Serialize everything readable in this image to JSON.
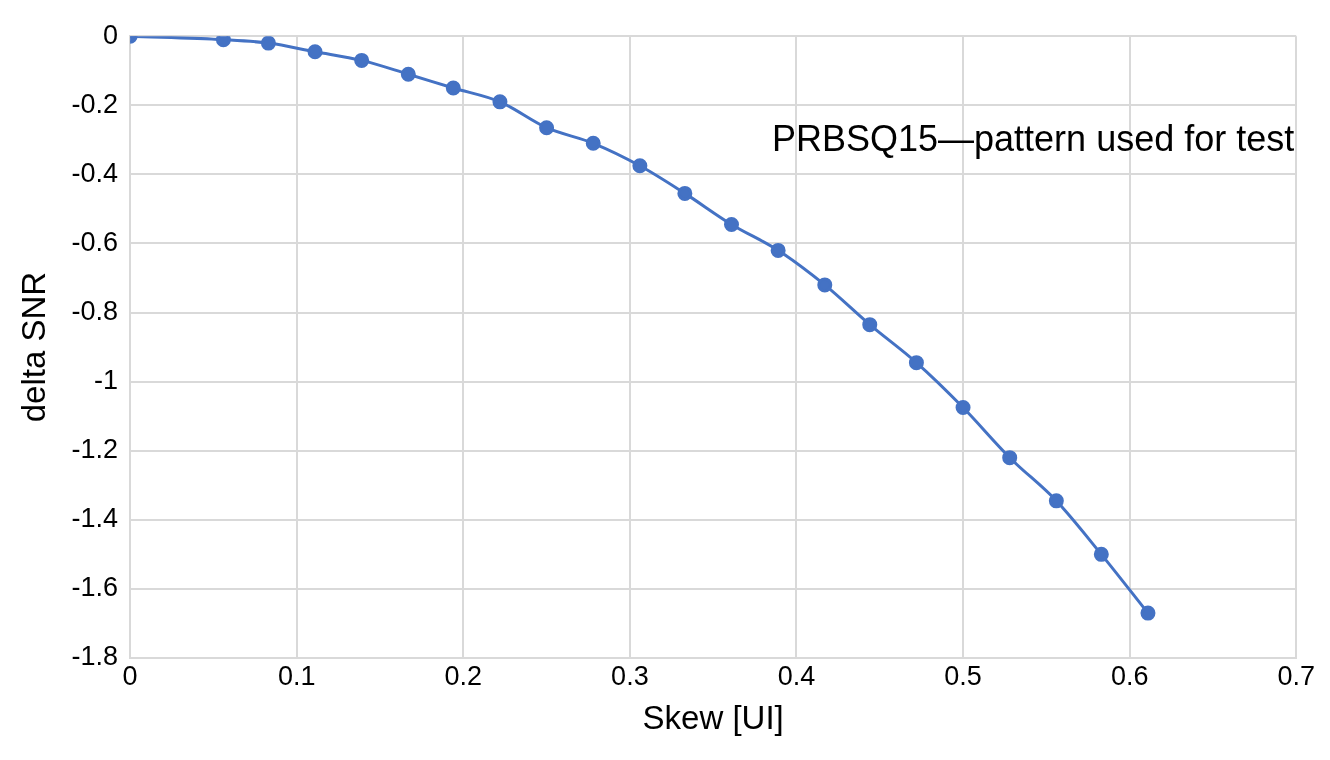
{
  "chart_data": {
    "type": "line",
    "xlabel": "Skew [UI]",
    "ylabel": "delta SNR",
    "annotations": [
      "PRBSQ15—pattern used for test"
    ],
    "x": [
      0,
      0.056,
      0.083,
      0.111,
      0.139,
      0.167,
      0.194,
      0.222,
      0.25,
      0.278,
      0.306,
      0.333,
      0.361,
      0.389,
      0.417,
      0.444,
      0.472,
      0.5,
      0.528,
      0.556,
      0.583,
      0.611
    ],
    "series": [
      {
        "color": "#4472c4",
        "values": [
          0,
          -0.01,
          -0.02,
          -0.045,
          -0.07,
          -0.11,
          -0.15,
          -0.19,
          -0.265,
          -0.31,
          -0.375,
          -0.455,
          -0.545,
          -0.62,
          -0.72,
          -0.835,
          -0.945,
          -1.075,
          -1.22,
          -1.345,
          -1.5,
          -1.67
        ]
      }
    ],
    "xlim": [
      0,
      0.7
    ],
    "xticks": [
      0,
      0.1,
      0.2,
      0.3,
      0.4,
      0.5,
      0.6,
      0.7
    ],
    "ylim": [
      -1.8,
      0
    ],
    "yticks": [
      0,
      -0.2,
      -0.4,
      -0.6,
      -0.8,
      -1,
      -1.2,
      -1.4,
      -1.6,
      -1.8
    ],
    "grid": true,
    "legend": false,
    "marker": "circle",
    "line_style": "solid"
  }
}
